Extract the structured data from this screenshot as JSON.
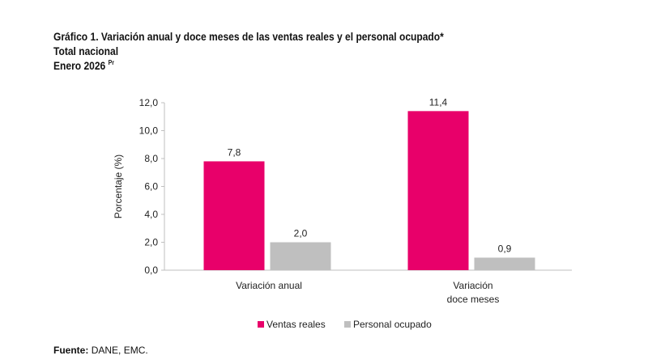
{
  "header": {
    "title": "Gráfico 1. Variación anual y doce meses de las ventas reales y el personal ocupado*",
    "subtitle": "Total nacional",
    "period": "Enero 2026",
    "period_sup": "Pr"
  },
  "source": {
    "label": "Fuente:",
    "text": "DANE, EMC."
  },
  "chart_data": {
    "type": "bar",
    "categories": [
      [
        "Variación anual"
      ],
      [
        "Variación",
        "doce meses"
      ]
    ],
    "series": [
      {
        "name": "Ventas reales",
        "color": "#E8006A",
        "values": [
          7.8,
          11.4
        ],
        "labels": [
          "7,8",
          "11,4"
        ]
      },
      {
        "name": "Personal ocupado",
        "color": "#BFBFBF",
        "values": [
          2.0,
          0.9
        ],
        "labels": [
          "2,0",
          "0,9"
        ]
      }
    ],
    "ylabel": "Porcentaje (%)",
    "ylim": [
      0,
      12
    ],
    "yticks": [
      0,
      2,
      4,
      6,
      8,
      10,
      12
    ],
    "ytick_labels": [
      "0,0",
      "2,0",
      "4,0",
      "6,0",
      "8,0",
      "10,0",
      "12,0"
    ],
    "grid": false,
    "legend": "bottom"
  }
}
